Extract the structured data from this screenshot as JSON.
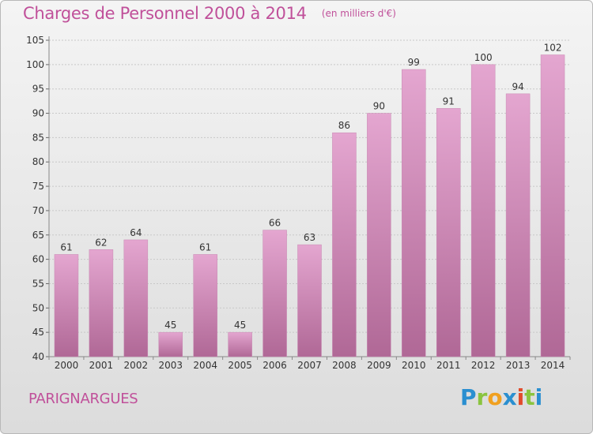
{
  "title": {
    "main": "Charges de Personnel 2000 à 2014",
    "sub": "(en milliers d'€)"
  },
  "commune": "PARIGNARGUES",
  "logo": {
    "letters": [
      {
        "char": "P",
        "color": "#2a8fd0"
      },
      {
        "char": "r",
        "color": "#8ac43f"
      },
      {
        "char": "o",
        "color": "#f0a020"
      },
      {
        "char": "x",
        "color": "#2a8fd0"
      },
      {
        "char": "i",
        "color": "#e24a2a"
      },
      {
        "char": "t",
        "color": "#8ac43f"
      },
      {
        "char": "i",
        "color": "#2a8fd0"
      }
    ]
  },
  "colors": {
    "title": "#c0509a",
    "bar_top": "#e4a6d0",
    "bar_bottom": "#b06896",
    "grid": "#c8c8c8"
  },
  "chart_data": {
    "type": "bar",
    "title": "Charges de Personnel 2000 à 2014",
    "subtitle": "(en milliers d'€)",
    "xlabel": "",
    "ylabel": "",
    "categories": [
      "2000",
      "2001",
      "2002",
      "2003",
      "2004",
      "2005",
      "2006",
      "2007",
      "2008",
      "2009",
      "2010",
      "2011",
      "2012",
      "2013",
      "2014"
    ],
    "values": [
      61,
      62,
      64,
      45,
      61,
      45,
      66,
      63,
      86,
      90,
      99,
      91,
      100,
      94,
      102
    ],
    "ylim": [
      40,
      105
    ],
    "yticks": [
      40,
      45,
      50,
      55,
      60,
      65,
      70,
      75,
      80,
      85,
      90,
      95,
      100,
      105
    ],
    "grid": true,
    "legend": "none"
  }
}
